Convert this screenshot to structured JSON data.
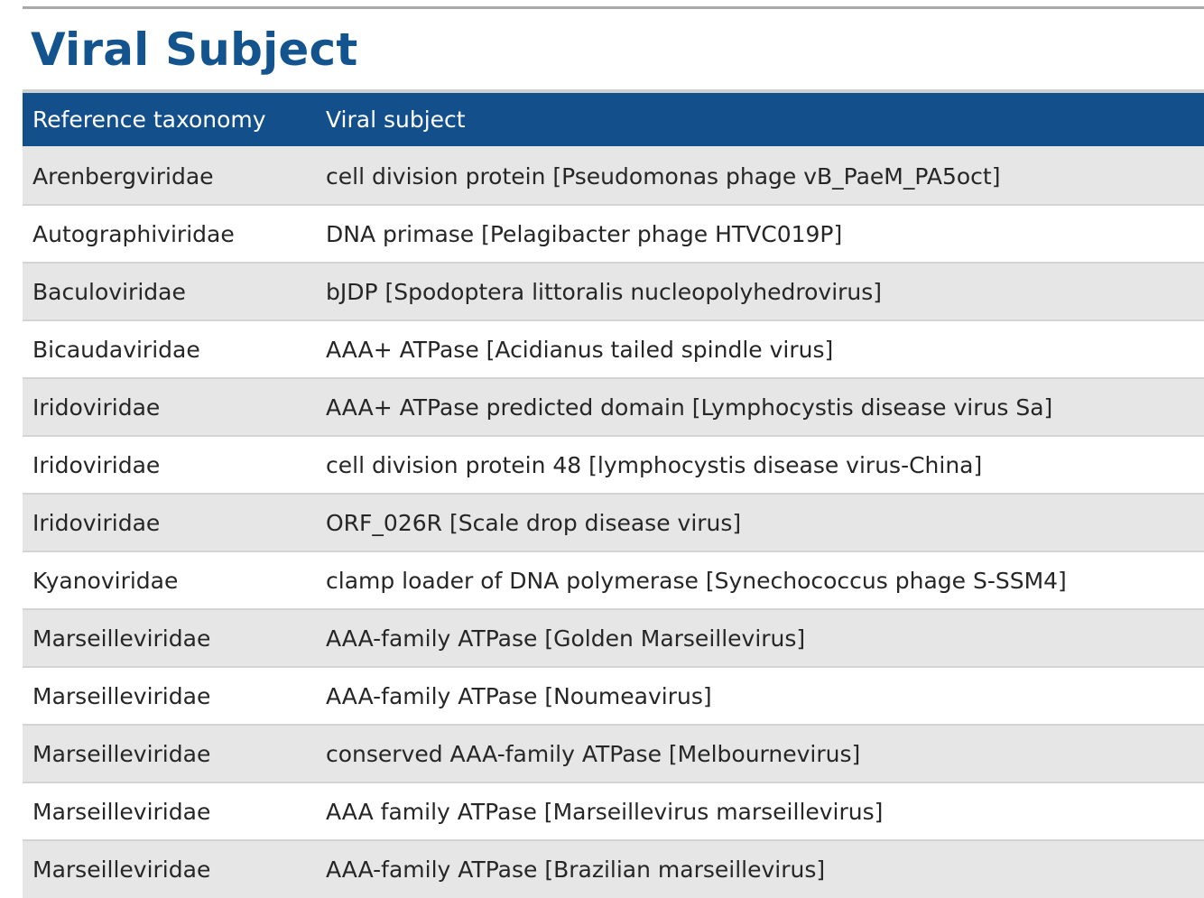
{
  "section": {
    "title": "Viral Subject"
  },
  "table": {
    "headers": [
      "Reference taxonomy",
      "Viral subject"
    ],
    "rows": [
      [
        "Arenbergviridae",
        "cell division protein [Pseudomonas phage vB_PaeM_PA5oct]"
      ],
      [
        "Autographiviridae",
        "DNA primase [Pelagibacter phage HTVC019P]"
      ],
      [
        "Baculoviridae",
        "bJDP [Spodoptera littoralis nucleopolyhedrovirus]"
      ],
      [
        "Bicaudaviridae",
        "AAA+ ATPase [Acidianus tailed spindle virus]"
      ],
      [
        "Iridoviridae",
        "AAA+ ATPase predicted domain [Lymphocystis disease virus Sa]"
      ],
      [
        "Iridoviridae",
        "cell division protein 48 [lymphocystis disease virus-China]"
      ],
      [
        "Iridoviridae",
        "ORF_026R [Scale drop disease virus]"
      ],
      [
        "Kyanoviridae",
        "clamp loader of DNA polymerase [Synechococcus phage S-SSM4]"
      ],
      [
        "Marseilleviridae",
        "AAA-family ATPase [Golden Marseillevirus]"
      ],
      [
        "Marseilleviridae",
        "AAA-family ATPase [Noumeavirus]"
      ],
      [
        "Marseilleviridae",
        "conserved AAA-family ATPase [Melbournevirus]"
      ],
      [
        "Marseilleviridae",
        "AAA family ATPase [Marseillevirus marseillevirus]"
      ],
      [
        "Marseilleviridae",
        "AAA-family ATPase [Brazilian marseillevirus]"
      ]
    ]
  },
  "colors": {
    "title": "#13538e",
    "header_bg": "#13508b",
    "header_text": "#ffffff",
    "row_alt_bg": "#e6e6e6",
    "row_bg": "#ffffff",
    "body_text": "#262626"
  }
}
